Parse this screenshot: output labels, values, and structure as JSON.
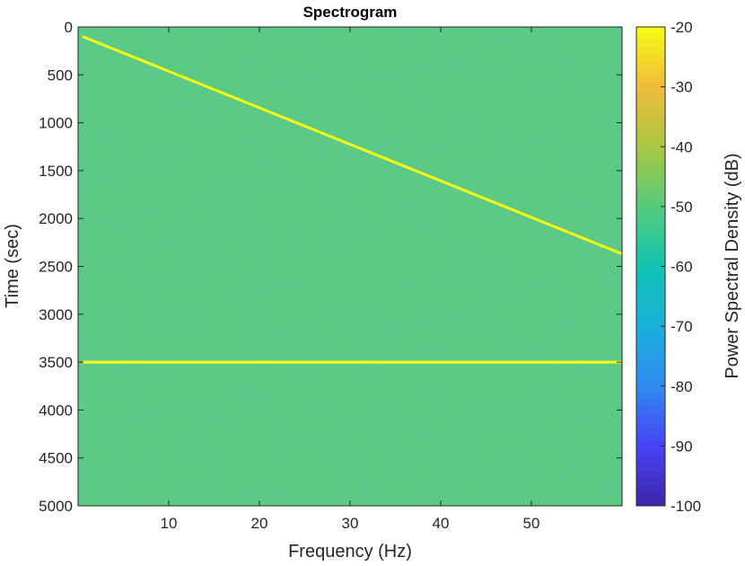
{
  "chart_data": {
    "type": "heatmap",
    "title": "Spectrogram",
    "xlabel": "Frequency (Hz)",
    "ylabel": "Time (sec)",
    "colorbar_label": "Power Spectral Density (dB)",
    "xlim": [
      0,
      60
    ],
    "ylim": [
      0,
      5000
    ],
    "y_reversed": true,
    "xticks": [
      10,
      20,
      30,
      40,
      50
    ],
    "yticks": [
      0,
      500,
      1000,
      1500,
      2000,
      2500,
      3000,
      3500,
      4000,
      4500,
      5000
    ],
    "clim": [
      -100,
      -20
    ],
    "cticks": [
      -20,
      -30,
      -40,
      -50,
      -60,
      -70,
      -80,
      -90,
      -100
    ],
    "colormap": [
      "#3e26a8",
      "#4743f8",
      "#2f8bf0",
      "#1ab0da",
      "#11c3b1",
      "#55cb7b",
      "#a9c742",
      "#f0bb3b",
      "#f9fb14"
    ],
    "background_level_db": -50,
    "series": [
      {
        "kind": "chirp",
        "level_db": -20,
        "points": [
          [
            0.5,
            100
          ],
          [
            60,
            2370
          ]
        ]
      },
      {
        "kind": "tone",
        "level_db": -20,
        "points": [
          [
            0.5,
            3500
          ],
          [
            60,
            3500
          ]
        ]
      }
    ]
  }
}
